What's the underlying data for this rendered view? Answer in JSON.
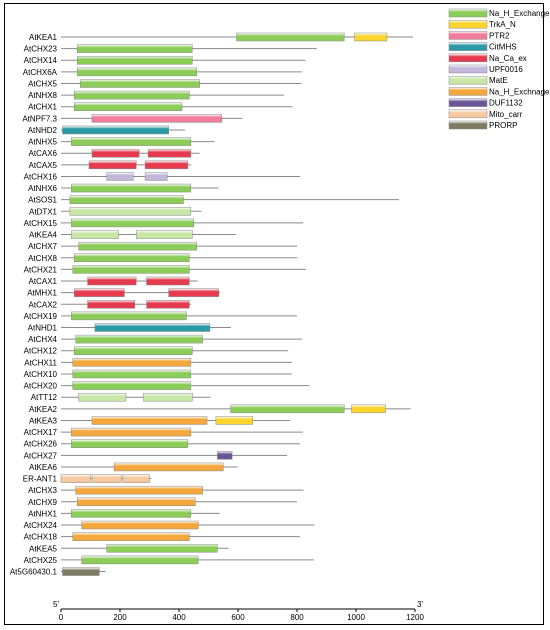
{
  "chart_data": {
    "type": "bar",
    "title": "",
    "xlabel": "",
    "ylabel": "",
    "xlim": [
      0,
      1200
    ],
    "x_ticks": [
      0,
      200,
      400,
      600,
      800,
      1000,
      1200
    ],
    "axis_start_label": "5'",
    "axis_end_label": "3'",
    "domains": [
      {
        "name": "Na_H_Exchanger",
        "color": "#8ccd5a"
      },
      {
        "name": "TrkA_N",
        "color": "#fbd42e"
      },
      {
        "name": "PTR2",
        "color": "#f27c9b"
      },
      {
        "name": "CitMHS",
        "color": "#2a9aa5"
      },
      {
        "name": "Na_Ca_ex",
        "color": "#e63b4f"
      },
      {
        "name": "UPF0016",
        "color": "#c2b6d9"
      },
      {
        "name": "MatE",
        "color": "#c8e6a5"
      },
      {
        "name": "Na_H_Exchnager",
        "color": "#f4a73c"
      },
      {
        "name": "DUF1132",
        "color": "#6b5596"
      },
      {
        "name": "Mito_carr",
        "color": "#f6c9a0"
      },
      {
        "name": "PRORP",
        "color": "#7d7b63"
      }
    ],
    "proteins": [
      {
        "name": "AtKEA1",
        "length": 1193,
        "domains": [
          [
            0,
            595,
            960
          ],
          [
            1,
            995,
            1105
          ]
        ]
      },
      {
        "name": "AtCHX23",
        "length": 867,
        "domains": [
          [
            0,
            55,
            445
          ]
        ]
      },
      {
        "name": "AtCHX14",
        "length": 829,
        "domains": [
          [
            0,
            55,
            445
          ]
        ]
      },
      {
        "name": "AtCHX6A",
        "length": 817,
        "domains": [
          [
            0,
            55,
            460
          ]
        ]
      },
      {
        "name": "AtCHX5",
        "length": 815,
        "domains": [
          [
            0,
            65,
            470
          ]
        ]
      },
      {
        "name": "AtNHX8",
        "length": 756,
        "domains": [
          [
            0,
            45,
            435
          ]
        ]
      },
      {
        "name": "AtCHX1",
        "length": 785,
        "domains": [
          [
            0,
            45,
            410
          ]
        ]
      },
      {
        "name": "AtNPF7.3",
        "length": 615,
        "domains": [
          [
            2,
            105,
            545
          ]
        ]
      },
      {
        "name": "AtNHD2",
        "length": 420,
        "domains": [
          [
            3,
            5,
            365
          ]
        ]
      },
      {
        "name": "AtNHX5",
        "length": 521,
        "domains": [
          [
            0,
            35,
            440
          ]
        ]
      },
      {
        "name": "AtCAX6",
        "length": 470,
        "domains": [
          [
            4,
            105,
            265
          ],
          [
            4,
            295,
            440
          ]
        ]
      },
      {
        "name": "AtCAX5",
        "length": 441,
        "domains": [
          [
            4,
            95,
            255
          ],
          [
            4,
            285,
            430
          ]
        ]
      },
      {
        "name": "AtCHX16",
        "length": 811,
        "domains": [
          [
            5,
            155,
            245
          ],
          [
            5,
            285,
            360
          ]
        ]
      },
      {
        "name": "AtNHX6",
        "length": 535,
        "domains": [
          [
            0,
            35,
            440
          ]
        ]
      },
      {
        "name": "AtSOS1",
        "length": 1146,
        "domains": [
          [
            0,
            30,
            415
          ]
        ]
      },
      {
        "name": "AtDTX1",
        "length": 476,
        "domains": [
          [
            6,
            30,
            440
          ]
        ]
      },
      {
        "name": "AtCHX15",
        "length": 821,
        "domains": [
          [
            0,
            35,
            450
          ]
        ]
      },
      {
        "name": "AtKEA4",
        "length": 592,
        "domains": [
          [
            6,
            35,
            195
          ],
          [
            6,
            255,
            445
          ]
        ]
      },
      {
        "name": "AtCHX7",
        "length": 801,
        "domains": [
          [
            0,
            60,
            460
          ]
        ]
      },
      {
        "name": "AtCHX8",
        "length": 801,
        "domains": [
          [
            0,
            45,
            435
          ]
        ]
      },
      {
        "name": "AtCHX21",
        "length": 830,
        "domains": [
          [
            0,
            40,
            435
          ]
        ]
      },
      {
        "name": "AtCAX1",
        "length": 463,
        "domains": [
          [
            4,
            90,
            255
          ],
          [
            4,
            290,
            435
          ]
        ]
      },
      {
        "name": "AtMHX1",
        "length": 539,
        "domains": [
          [
            4,
            45,
            215
          ],
          [
            4,
            365,
            535
          ]
        ]
      },
      {
        "name": "AtCAX2",
        "length": 441,
        "domains": [
          [
            4,
            90,
            250
          ],
          [
            4,
            290,
            435
          ]
        ]
      },
      {
        "name": "AtCHX19",
        "length": 800,
        "domains": [
          [
            0,
            35,
            425
          ]
        ]
      },
      {
        "name": "AtNHD1",
        "length": 576,
        "domains": [
          [
            3,
            115,
            505
          ]
        ]
      },
      {
        "name": "AtCHX4",
        "length": 817,
        "domains": [
          [
            0,
            50,
            480
          ]
        ]
      },
      {
        "name": "AtCHX12",
        "length": 770,
        "domains": [
          [
            0,
            45,
            445
          ]
        ]
      },
      {
        "name": "AtCHX11",
        "length": 783,
        "domains": [
          [
            7,
            40,
            440
          ]
        ]
      },
      {
        "name": "AtCHX10",
        "length": 783,
        "domains": [
          [
            0,
            40,
            440
          ]
        ]
      },
      {
        "name": "AtCHX20",
        "length": 842,
        "domains": [
          [
            0,
            40,
            440
          ]
        ]
      },
      {
        "name": "AtTT12",
        "length": 507,
        "domains": [
          [
            6,
            60,
            220
          ],
          [
            6,
            280,
            445
          ]
        ]
      },
      {
        "name": "AtKEA2",
        "length": 1185,
        "domains": [
          [
            0,
            575,
            960
          ],
          [
            1,
            985,
            1100
          ]
        ]
      },
      {
        "name": "AtKEA3",
        "length": 776,
        "domains": [
          [
            7,
            105,
            495
          ],
          [
            1,
            525,
            650
          ]
        ]
      },
      {
        "name": "AtCHX17",
        "length": 820,
        "domains": [
          [
            7,
            35,
            440
          ]
        ]
      },
      {
        "name": "AtCHX26",
        "length": 810,
        "domains": [
          [
            0,
            35,
            430
          ]
        ]
      },
      {
        "name": "AtCHX27",
        "length": 767,
        "domains": [
          [
            8,
            530,
            580
          ]
        ]
      },
      {
        "name": "AtKEA6",
        "length": 599,
        "domains": [
          [
            7,
            180,
            550
          ]
        ]
      },
      {
        "name": "ER-ANT1",
        "length": 306,
        "domains": [
          [
            9,
            0,
            100
          ],
          [
            9,
            105,
            205
          ],
          [
            9,
            210,
            300
          ]
        ]
      },
      {
        "name": "AtCHX3",
        "length": 822,
        "domains": [
          [
            7,
            50,
            480
          ]
        ]
      },
      {
        "name": "AtCHX9",
        "length": 800,
        "domains": [
          [
            7,
            55,
            455
          ]
        ]
      },
      {
        "name": "AtNHX1",
        "length": 538,
        "domains": [
          [
            0,
            35,
            440
          ]
        ]
      },
      {
        "name": "AtCHX24",
        "length": 859,
        "domains": [
          [
            7,
            70,
            465
          ]
        ]
      },
      {
        "name": "AtCHX18",
        "length": 810,
        "domains": [
          [
            7,
            40,
            435
          ]
        ]
      },
      {
        "name": "AtKEA5",
        "length": 568,
        "domains": [
          [
            0,
            155,
            530
          ]
        ]
      },
      {
        "name": "AtCHX25",
        "length": 857,
        "domains": [
          [
            0,
            70,
            465
          ]
        ]
      },
      {
        "name": "At5G60430.1",
        "length": 151,
        "domains": [
          [
            10,
            5,
            130
          ]
        ]
      }
    ]
  }
}
